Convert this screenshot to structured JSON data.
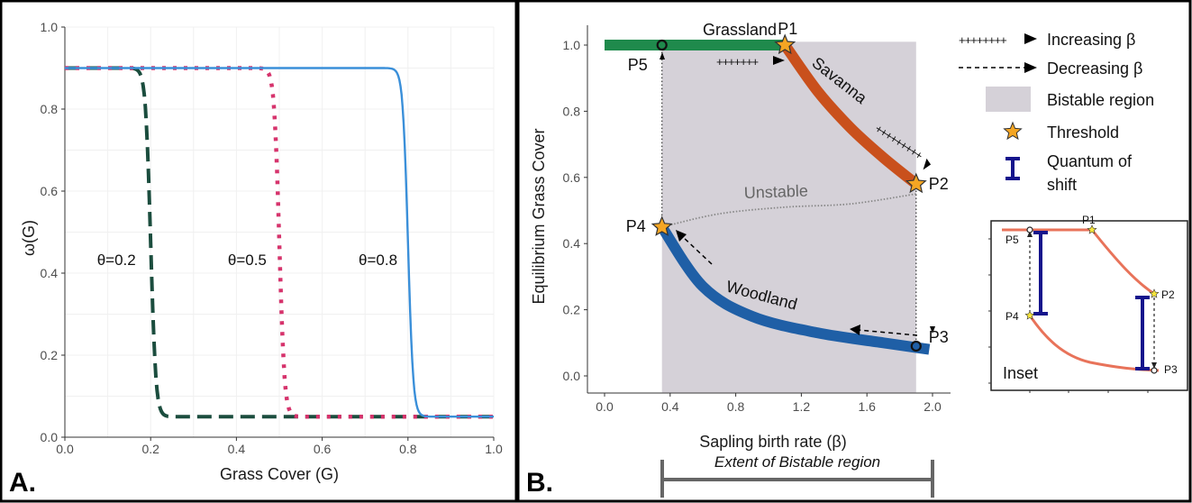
{
  "chart_data": [
    {
      "panel_label": "A.",
      "type": "line",
      "xlabel": "Grass Cover (G)",
      "ylabel": "ω(G)",
      "xlim": [
        0,
        1
      ],
      "ylim": [
        0,
        1
      ],
      "xticks": [
        "0.0",
        "0.2",
        "0.4",
        "0.6",
        "0.8",
        "1.0"
      ],
      "yticks": [
        "0.0",
        "0.2",
        "0.4",
        "0.6",
        "0.8",
        "1.0"
      ],
      "grid": true,
      "series": [
        {
          "name": "θ=0.2",
          "theta": 0.2,
          "color": "#1b4d3e",
          "style": "dashed",
          "x": [
            0,
            0.18,
            0.2,
            0.22,
            0.25,
            1
          ],
          "y": [
            0.9,
            0.86,
            0.48,
            0.08,
            0.05,
            0.05
          ]
        },
        {
          "name": "θ=0.5",
          "theta": 0.5,
          "color": "#d6336c",
          "style": "dotted",
          "x": [
            0,
            0.49,
            0.5,
            0.51,
            0.53,
            1
          ],
          "y": [
            0.9,
            0.87,
            0.48,
            0.1,
            0.05,
            0.05
          ]
        },
        {
          "name": "θ=0.8",
          "theta": 0.8,
          "color": "#3a8fd9",
          "style": "solid",
          "x": [
            0,
            0.78,
            0.8,
            0.82,
            0.85,
            1
          ],
          "y": [
            0.9,
            0.88,
            0.48,
            0.08,
            0.05,
            0.05
          ]
        }
      ]
    },
    {
      "panel_label": "B.",
      "type": "line",
      "xlabel": "Sapling birth rate (β)",
      "ylabel": "Equilibrium Grass Cover",
      "xlim": [
        -0.1,
        2.05
      ],
      "ylim": [
        -0.05,
        1.05
      ],
      "xticks": [
        "0.0",
        "0.4",
        "0.8",
        "1.2",
        "1.6",
        "2.0"
      ],
      "yticks": [
        "0.0",
        "0.2",
        "0.4",
        "0.6",
        "0.8",
        "1.0"
      ],
      "bistable_region": [
        0.35,
        1.9
      ],
      "series": [
        {
          "name": "Grassland",
          "color": "#1f8a4c",
          "x": [
            0.0,
            1.1
          ],
          "y": [
            1.0,
            1.0
          ]
        },
        {
          "name": "Savanna",
          "color": "#c9501c",
          "x": [
            1.1,
            1.3,
            1.5,
            1.7,
            1.9
          ],
          "y": [
            1.0,
            0.86,
            0.75,
            0.66,
            0.58
          ]
        },
        {
          "name": "Unstable",
          "color": "#888888",
          "x": [
            0.35,
            0.7,
            1.1,
            1.5,
            1.9
          ],
          "y": [
            0.45,
            0.49,
            0.51,
            0.52,
            0.55
          ]
        },
        {
          "name": "Woodland",
          "color": "#1f5fa6",
          "x": [
            0.35,
            0.6,
            0.9,
            1.3,
            1.7,
            1.98
          ],
          "y": [
            0.45,
            0.27,
            0.18,
            0.13,
            0.1,
            0.08
          ]
        }
      ],
      "points": [
        {
          "label": "P1",
          "x": 1.1,
          "y": 1.0,
          "marker": "star"
        },
        {
          "label": "P2",
          "x": 1.9,
          "y": 0.58,
          "marker": "star"
        },
        {
          "label": "P3",
          "x": 1.9,
          "y": 0.09,
          "marker": "circle"
        },
        {
          "label": "P4",
          "x": 0.35,
          "y": 0.45,
          "marker": "star"
        },
        {
          "label": "P5",
          "x": 0.35,
          "y": 1.0,
          "marker": "circle"
        }
      ],
      "legend": {
        "position": "right",
        "entries": [
          "Increasing β",
          "Decreasing β",
          "Bistable region",
          "Threshold",
          "Quantum of",
          "shift"
        ]
      },
      "inset_label": "Inset",
      "extent_label": "Extent of Bistable region"
    }
  ]
}
